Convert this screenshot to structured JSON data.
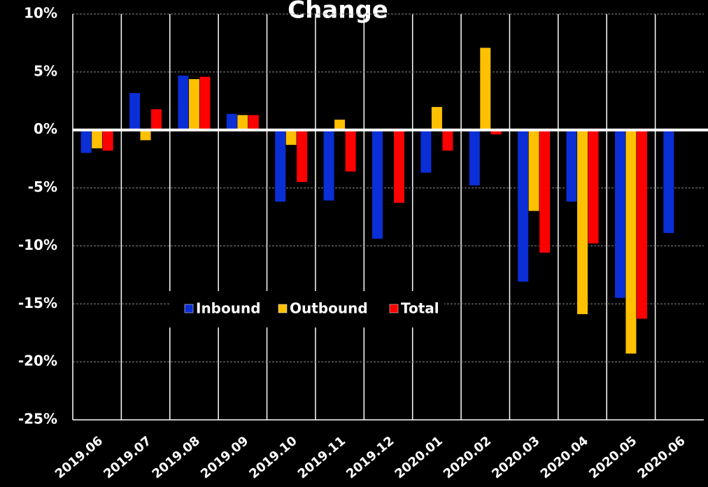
{
  "chart_data": {
    "type": "bar",
    "title": "Change",
    "categories": [
      "2019.06",
      "2019.07",
      "2019.08",
      "2019.09",
      "2019.10",
      "2019.11",
      "2019.12",
      "2020.01",
      "2020.02",
      "2020.03",
      "2020.04",
      "2020.05",
      "2020.06"
    ],
    "series": [
      {
        "name": "Inbound",
        "color": "#0a2fd6",
        "values": [
          -2.0,
          3.2,
          4.7,
          1.4,
          -6.2,
          -6.1,
          -9.4,
          -3.7,
          -4.8,
          -13.1,
          -6.2,
          -14.5,
          -8.9
        ]
      },
      {
        "name": "Outbound",
        "color": "#ffc000",
        "values": [
          -1.6,
          -0.9,
          4.4,
          1.3,
          -1.3,
          0.9,
          0,
          2.0,
          7.1,
          -7.0,
          -15.9,
          -19.3,
          null
        ]
      },
      {
        "name": "Total",
        "color": "#ff0000",
        "values": [
          -1.8,
          1.8,
          4.6,
          1.3,
          -4.5,
          -3.6,
          -6.3,
          -1.8,
          -0.4,
          -10.6,
          -9.8,
          -16.3,
          null
        ]
      }
    ],
    "ylim": [
      -25,
      10
    ],
    "yticks": [
      {
        "value": -25,
        "label": "-25%"
      },
      {
        "value": -20,
        "label": "-20%"
      },
      {
        "value": -15,
        "label": "-15%"
      },
      {
        "value": -10,
        "label": "-10%"
      },
      {
        "value": -5,
        "label": "-5%"
      },
      {
        "value": 0,
        "label": "0%"
      },
      {
        "value": 5,
        "label": "5%"
      },
      {
        "value": 10,
        "label": "10%"
      }
    ],
    "grid": true
  }
}
